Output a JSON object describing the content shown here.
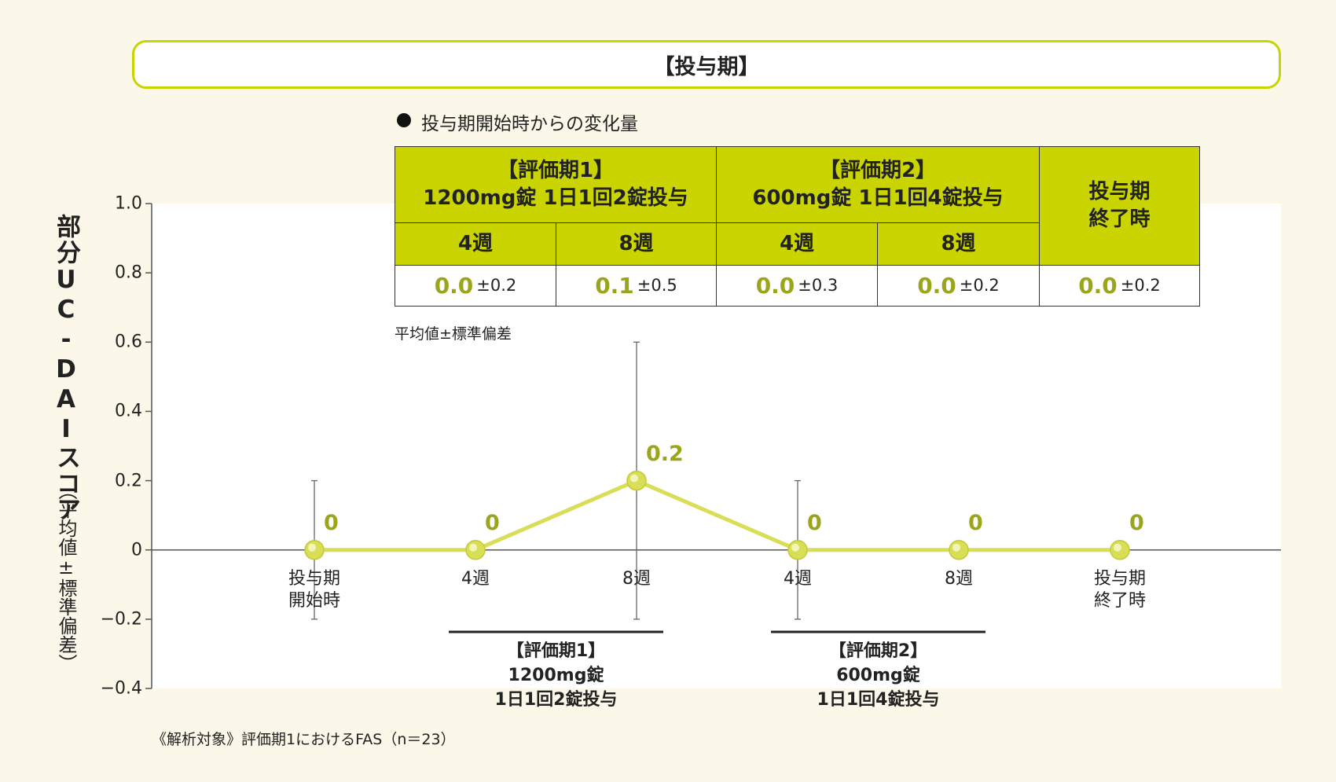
{
  "header": {
    "title": "【投与期】"
  },
  "legend": "投与期開始時からの変化量",
  "table": {
    "headers": [
      "【評価期1】\n1200mg錠 1日1回2錠投与",
      "【評価期2】\n600mg錠 1日1回4錠投与",
      "投与期\n終了時"
    ],
    "subheaders": [
      "4週",
      "8週",
      "4週",
      "8週"
    ],
    "cells": [
      {
        "mean": "0.0",
        "sd": "±0.2"
      },
      {
        "mean": "0.1",
        "sd": "±0.5"
      },
      {
        "mean": "0.0",
        "sd": "±0.3"
      },
      {
        "mean": "0.0",
        "sd": "±0.2"
      },
      {
        "mean": "0.0",
        "sd": "±0.2"
      }
    ],
    "note": "平均値±標準偏差"
  },
  "chart_data": {
    "type": "line",
    "y_label": "部分UC-DAIスコア",
    "y_label_note": "（平均値±標準偏差）",
    "categories": [
      "投与期\n開始時",
      "4週",
      "8週",
      "4週",
      "8週",
      "投与期\n終了時"
    ],
    "values": [
      0,
      0,
      0.2,
      0,
      0,
      0
    ],
    "errors": [
      0.2,
      null,
      0.4,
      0.2,
      null,
      null
    ],
    "color": "#d8de55",
    "label_color": "#9ba51c",
    "ylim": [
      -0.4,
      1.0
    ],
    "yticks": [
      {
        "value": 1.0,
        "label": "1.0"
      },
      0.8,
      0.6,
      0.4,
      0.2,
      0,
      {
        "value": -0.2,
        "label": "−0.2"
      },
      {
        "value": -0.4,
        "label": "−0.4"
      }
    ],
    "annotations": [
      "【評価期1】\n1200mg錠\n1日1回2錠投与",
      "【評価期2】\n600mg錠\n1日1回4錠投与"
    ]
  },
  "footnote": "《解析対象》評価期1におけるFAS（n＝23）"
}
